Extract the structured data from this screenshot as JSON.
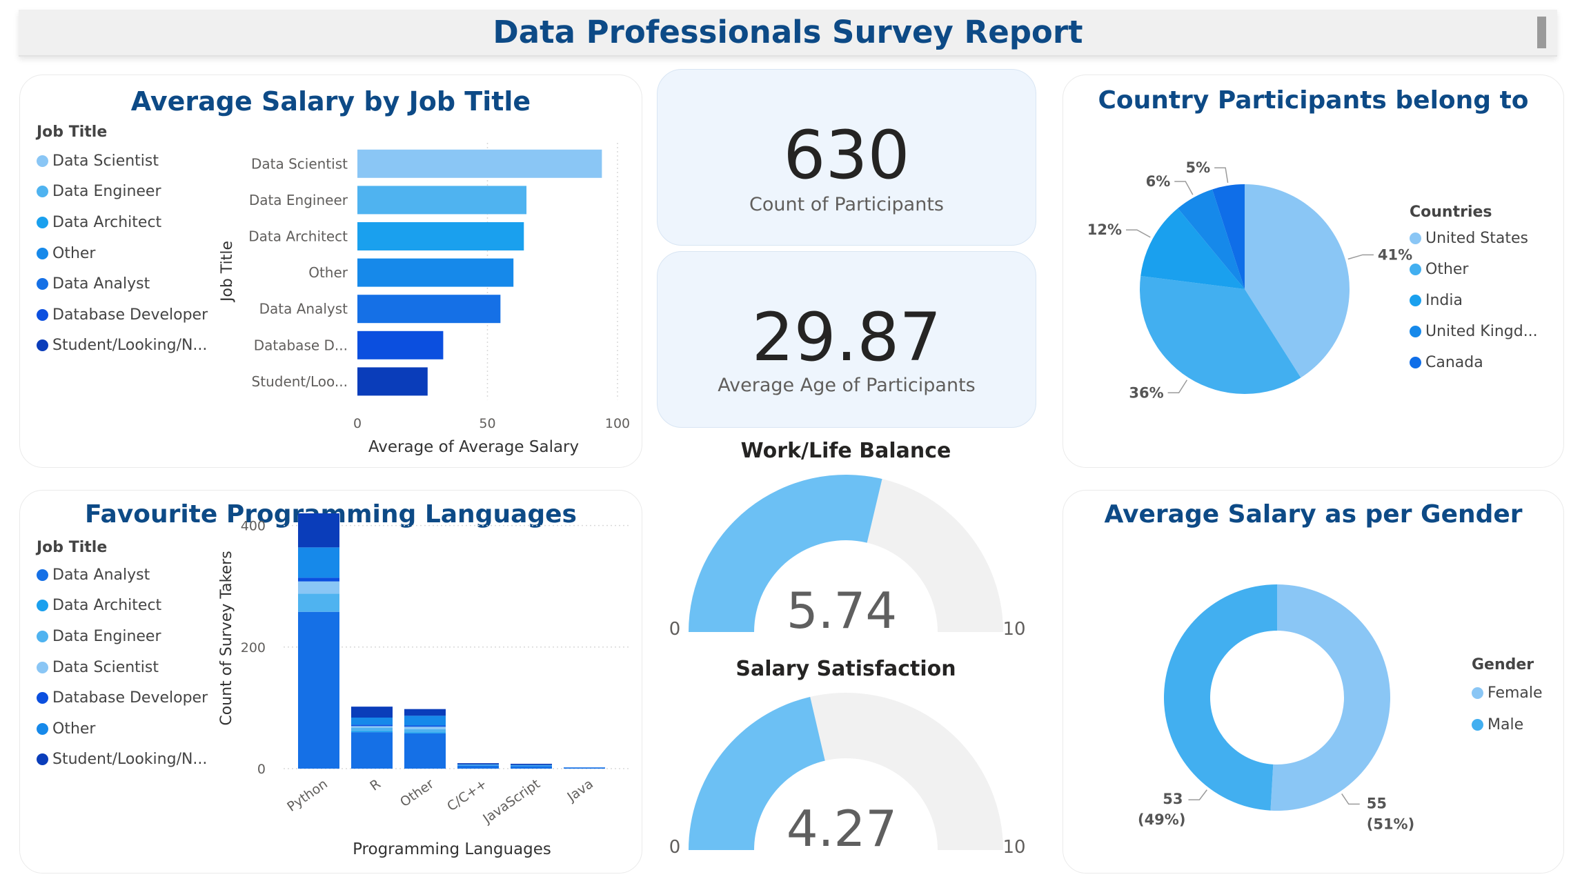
{
  "report_title": "Data Professionals Survey Report",
  "kpis": {
    "participants": {
      "value": "630",
      "label": "Count of Participants"
    },
    "age": {
      "value": "29.87",
      "label": "Average Age of Participants"
    }
  },
  "salary_by_job": {
    "title": "Average Salary by Job Title",
    "legend_title": "Job Title",
    "legend": [
      {
        "label": "Data Scientist",
        "color": "#8ac6f5"
      },
      {
        "label": "Data Engineer",
        "color": "#4fb3f0"
      },
      {
        "label": "Data Architect",
        "color": "#1aa0ee"
      },
      {
        "label": "Other",
        "color": "#1689ea"
      },
      {
        "label": "Data Analyst",
        "color": "#1570e6"
      },
      {
        "label": "Database Developer",
        "color": "#0b4fdf"
      },
      {
        "label": "Student/Looking/N...",
        "color": "#0a3dba"
      }
    ]
  },
  "languages": {
    "title": "Favourite Programming Languages",
    "legend_title": "Job Title",
    "legend": [
      {
        "label": "Data Analyst",
        "color": "#1570e6"
      },
      {
        "label": "Data Architect",
        "color": "#1aa0ee"
      },
      {
        "label": "Data Engineer",
        "color": "#4fb3f0"
      },
      {
        "label": "Data Scientist",
        "color": "#8ac6f5"
      },
      {
        "label": "Database Developer",
        "color": "#0b4fdf"
      },
      {
        "label": "Other",
        "color": "#1689ea"
      },
      {
        "label": "Student/Looking/N...",
        "color": "#0a3dba"
      }
    ]
  },
  "country": {
    "title": "Country Participants belong to",
    "legend_title": "Countries",
    "legend": [
      {
        "label": "United States",
        "color": "#8ac6f5"
      },
      {
        "label": "Other",
        "color": "#42aff0"
      },
      {
        "label": "India",
        "color": "#1aa0ee"
      },
      {
        "label": "United Kingd...",
        "color": "#1689ea"
      },
      {
        "label": "Canada",
        "color": "#0f6ee8"
      }
    ]
  },
  "gender": {
    "title": "Average Salary as per Gender",
    "legend_title": "Gender",
    "legend": [
      {
        "label": "Female",
        "color": "#8ac6f5"
      },
      {
        "label": "Male",
        "color": "#42aff0"
      }
    ]
  },
  "worklife": {
    "title": "Work/Life Balance"
  },
  "salarysat": {
    "title": "Salary Satisfaction"
  },
  "chart_data": [
    {
      "id": "salary_by_job",
      "type": "bar",
      "orientation": "horizontal",
      "title": "Average Salary by Job Title",
      "categories": [
        "Data Scientist",
        "Data Engineer",
        "Data Architect",
        "Other",
        "Data Analyst",
        "Database D...",
        "Student/Loo..."
      ],
      "values": [
        94,
        65,
        64,
        60,
        55,
        33,
        27
      ],
      "colors": [
        "#8ac6f5",
        "#4fb3f0",
        "#1aa0ee",
        "#1689ea",
        "#1570e6",
        "#0b4fdf",
        "#0a3dba"
      ],
      "xlabel": "Average of Average Salary",
      "ylabel": "Job Title",
      "xlim": [
        0,
        100
      ],
      "xticks": [
        0,
        50,
        100
      ]
    },
    {
      "id": "languages",
      "type": "bar",
      "stacked": true,
      "title": "Favourite Programming Languages",
      "categories": [
        "Python",
        "R",
        "Other",
        "C/C++",
        "JavaScript",
        "Java"
      ],
      "series": [
        {
          "name": "Data Analyst",
          "color": "#1570e6",
          "values": [
            258,
            60,
            58,
            5,
            4,
            2
          ]
        },
        {
          "name": "Data Architect",
          "color": "#1aa0ee",
          "values": [
            0,
            2,
            2,
            0,
            0,
            0
          ]
        },
        {
          "name": "Data Engineer",
          "color": "#4fb3f0",
          "values": [
            30,
            5,
            5,
            1,
            1,
            0
          ]
        },
        {
          "name": "Data Scientist",
          "color": "#8ac6f5",
          "values": [
            20,
            3,
            4,
            0,
            0,
            0
          ]
        },
        {
          "name": "Database Developer",
          "color": "#0b4fdf",
          "values": [
            6,
            2,
            2,
            0,
            0,
            0
          ]
        },
        {
          "name": "Other",
          "color": "#1689ea",
          "values": [
            50,
            12,
            16,
            1,
            1,
            0
          ]
        },
        {
          "name": "Student/Looking/N...",
          "color": "#0a3dba",
          "values": [
            56,
            18,
            11,
            2,
            2,
            0
          ]
        }
      ],
      "xlabel": "Programming Languages",
      "ylabel": "Count of Survey Takers",
      "ylim": [
        0,
        420
      ],
      "yticks": [
        0,
        200,
        400
      ]
    },
    {
      "id": "country",
      "type": "pie",
      "title": "Country Participants belong to",
      "labels": [
        "United States",
        "Other",
        "India",
        "United Kingd...",
        "Canada"
      ],
      "values": [
        41,
        36,
        12,
        6,
        5
      ],
      "value_labels": [
        "41%",
        "36%",
        "12%",
        "6%",
        "5%"
      ],
      "colors": [
        "#8ac6f5",
        "#42aff0",
        "#1aa0ee",
        "#1689ea",
        "#0f6ee8"
      ]
    },
    {
      "id": "gender",
      "type": "pie",
      "donut": true,
      "title": "Average Salary as per Gender",
      "labels": [
        "Female",
        "Male"
      ],
      "values": [
        55,
        53
      ],
      "value_labels": [
        "55",
        "53"
      ],
      "percent_labels": [
        "(51%)",
        "(49%)"
      ],
      "colors": [
        "#8ac6f5",
        "#42aff0"
      ]
    },
    {
      "id": "worklife",
      "type": "gauge",
      "title": "Work/Life Balance",
      "value": 5.74,
      "value_label": "5.74",
      "min": 0,
      "max": 10,
      "min_label": "0",
      "max_label": "10",
      "fill_color": "#6cc0f4",
      "track_color": "#f1f1f1"
    },
    {
      "id": "salarysat",
      "type": "gauge",
      "title": "Salary Satisfaction",
      "value": 4.27,
      "value_label": "4.27",
      "min": 0,
      "max": 10,
      "min_label": "0",
      "max_label": "10",
      "fill_color": "#6cc0f4",
      "track_color": "#f1f1f1"
    }
  ]
}
